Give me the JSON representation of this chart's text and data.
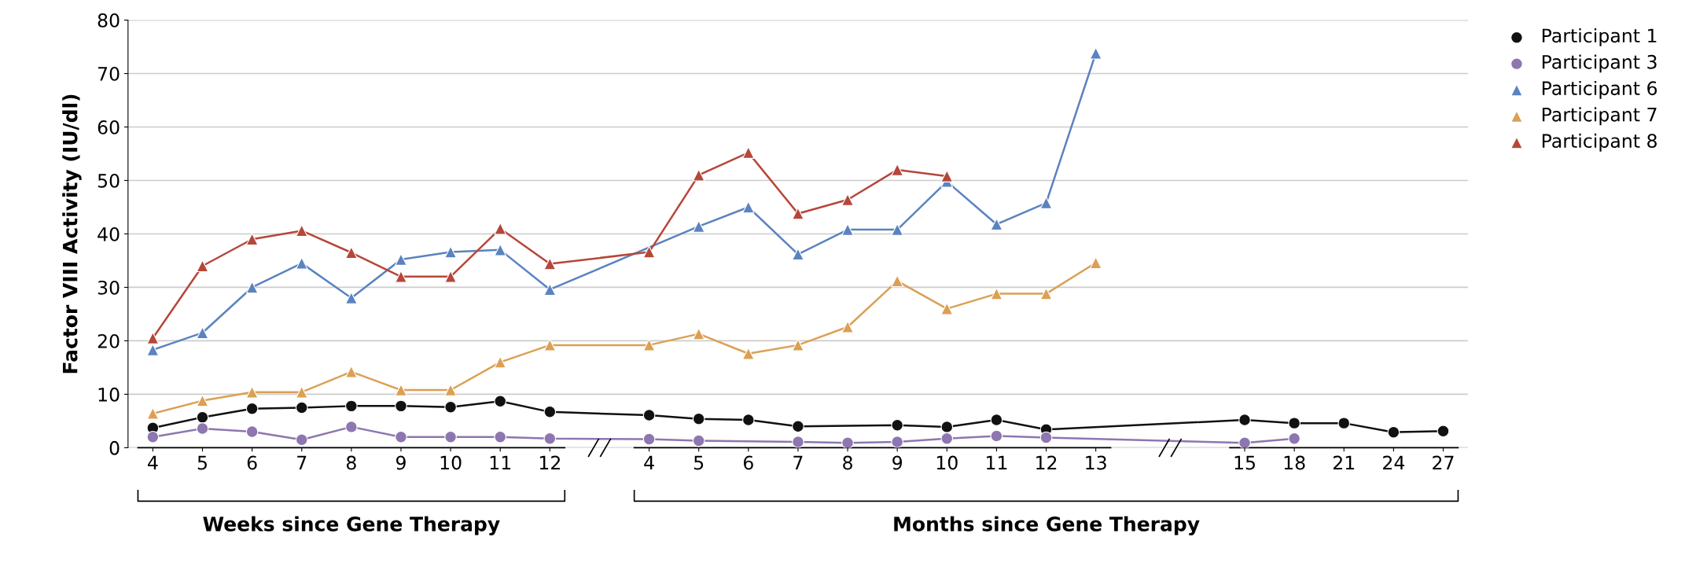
{
  "chart_data": {
    "type": "line",
    "ylabel": "Factor VIII Activity (IU/dl)",
    "ylim": [
      0,
      80
    ],
    "yticks": [
      0,
      10,
      20,
      30,
      40,
      50,
      60,
      70,
      80
    ],
    "grid": "y",
    "legend": "top right",
    "categories": [
      "4",
      "5",
      "6",
      "7",
      "8",
      "9",
      "10",
      "11",
      "12",
      null,
      "4",
      "5",
      "6",
      "7",
      "8",
      "9",
      "10",
      "11",
      "12",
      "13",
      null,
      null,
      "15",
      "18",
      "21",
      "24",
      "27"
    ],
    "annotations": [
      "Weeks since Gene Therapy",
      "Months since Gene Therapy"
    ],
    "series": [
      {
        "name": "Participant 1",
        "color": "#111111",
        "marker": "circle",
        "values": [
          3.7,
          5.7,
          7.3,
          7.5,
          7.8,
          7.8,
          7.6,
          8.7,
          6.7,
          null,
          6.1,
          5.4,
          5.2,
          4.0,
          null,
          4.2,
          3.9,
          5.2,
          3.4,
          null,
          null,
          null,
          5.2,
          4.6,
          4.6,
          2.9,
          3.1
        ]
      },
      {
        "name": "Participant 3",
        "color": "#8e76b0",
        "marker": "circle",
        "values": [
          2.0,
          3.6,
          3.0,
          1.5,
          3.9,
          2.0,
          2.0,
          2.0,
          1.7,
          null,
          1.6,
          1.3,
          null,
          1.1,
          0.9,
          1.1,
          1.7,
          2.2,
          1.9,
          null,
          null,
          null,
          0.9,
          1.7,
          null,
          null,
          null
        ]
      },
      {
        "name": "Participant 6",
        "color": "#5b83c0",
        "marker": "triangle",
        "values": [
          18.3,
          21.5,
          30,
          34.5,
          28,
          35.2,
          36.6,
          37,
          29.6,
          null,
          null,
          41.4,
          45,
          36.2,
          40.8,
          40.8,
          49.8,
          41.8,
          45.8,
          73.8,
          null,
          null,
          null,
          null,
          null,
          null,
          null
        ]
      },
      {
        "name": "Participant 7",
        "color": "#dba054",
        "marker": "triangle",
        "values": [
          6.4,
          8.8,
          10.4,
          10.4,
          14.2,
          10.8,
          10.8,
          16,
          19.2,
          null,
          19.2,
          21.3,
          17.6,
          19.2,
          22.6,
          31.2,
          26,
          28.8,
          28.8,
          34.6,
          null,
          null,
          null,
          null,
          null,
          null,
          null
        ]
      },
      {
        "name": "Participant 8",
        "color": "#b5473a",
        "marker": "triangle",
        "values": [
          20.5,
          34,
          39,
          40.6,
          36.5,
          32,
          32,
          41,
          34.4,
          null,
          36.6,
          51,
          55.2,
          43.8,
          46.4,
          52,
          50.8,
          null,
          null,
          null,
          null,
          null,
          null,
          null,
          null,
          null,
          null
        ]
      }
    ]
  }
}
